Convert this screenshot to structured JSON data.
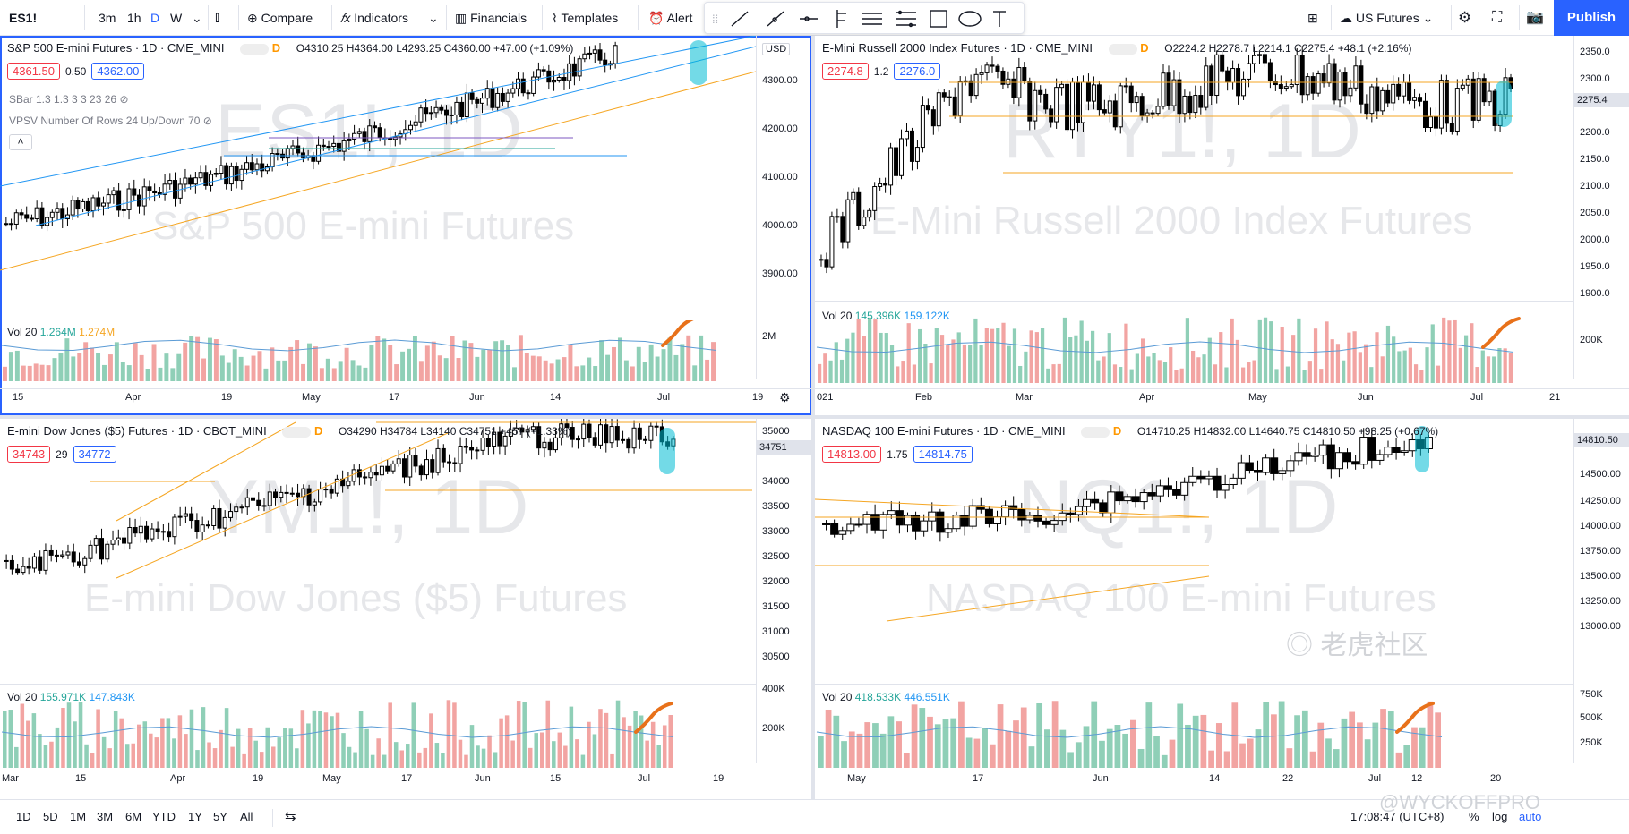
{
  "topbar": {
    "symbol": "ES1!",
    "intervals": [
      "3m",
      "1h",
      "D",
      "W"
    ],
    "compare": "Compare",
    "indicators": "Indicators",
    "financials": "Financials",
    "templates": "Templates",
    "alert": "Alert",
    "watchlist": "US Futures",
    "publish": "Publish"
  },
  "panels": [
    {
      "id": "es",
      "title": "S&P 500 E-mini Futures · 1D · CME_MINI",
      "ohlc": "O4310.25 H4364.00 L4293.25 C4360.00 +47.00 (+1.09%)",
      "sell": "4361.50",
      "spread": "0.50",
      "buy": "4362.00",
      "currency": "USD",
      "indicators": [
        "SBar 1.3 1.3 3 3 23 26",
        "VPSV Number Of Rows 24 Up/Down 70"
      ],
      "watermark_symbol": "ES1!, 1D",
      "watermark_name": "S&P 500 E-mini Futures",
      "price_ticks": [
        "4300.00",
        "4200.00",
        "4100.00",
        "4000.00",
        "3900.00"
      ],
      "vol_legend": "Vol 20",
      "vol_v1": "1.264M",
      "vol_v2": "1.274M",
      "vol_tick": "2M",
      "date_ticks": [
        "15",
        "Apr",
        "19",
        "May",
        "17",
        "Jun",
        "14",
        "Jul",
        "19"
      ]
    },
    {
      "id": "rty",
      "title": "E-Mini Russell 2000 Index Futures · 1D · CME_MINI",
      "ohlc": "O2224.2 H2278.7 L2214.1 C2275.4 +48.1 (+2.16%)",
      "sell": "2274.8",
      "spread": "1.2",
      "buy": "2276.0",
      "watermark_symbol": "RTY1!, 1D",
      "watermark_name": "E-Mini Russell 2000 Index Futures",
      "price_ticks": [
        "2350.0",
        "2300.0",
        "2250.0",
        "2200.0",
        "2150.0",
        "2100.0",
        "2050.0",
        "2000.0",
        "1950.0",
        "1900.0"
      ],
      "last_price": "2275.4",
      "vol_legend": "Vol 20",
      "vol_v1": "145.396K",
      "vol_v2": "159.122K",
      "vol_tick": "200K",
      "date_ticks": [
        "021",
        "Feb",
        "Mar",
        "Apr",
        "May",
        "Jun",
        "Jul",
        "21"
      ]
    },
    {
      "id": "ym",
      "title": "E-mini Dow Jones ($5) Futures · 1D · CBOT_MINI",
      "ohlc": "O34290 H34784 L34140 C34751 +457 (+1.33%)",
      "sell": "34743",
      "spread": "29",
      "buy": "34772",
      "watermark_symbol": "YM1!, 1D",
      "watermark_name": "E-mini Dow Jones ($5) Futures",
      "price_ticks": [
        "35000",
        "34500",
        "34000",
        "33500",
        "33000",
        "32500",
        "32000",
        "31500",
        "31000",
        "30500"
      ],
      "last_price": "34751",
      "vol_legend": "Vol 20",
      "vol_v1": "155.971K",
      "vol_v2": "147.843K",
      "vol_ticks": [
        "400K",
        "200K"
      ],
      "date_ticks": [
        "Mar",
        "15",
        "Apr",
        "19",
        "May",
        "17",
        "Jun",
        "15",
        "Jul",
        "19"
      ]
    },
    {
      "id": "nq",
      "title": "NASDAQ 100 E-mini Futures · 1D · CME_MINI",
      "ohlc": "O14710.25 H14832.00 L14640.75 C14810.50 +98.25 (+0.67%)",
      "sell": "14813.00",
      "spread": "1.75",
      "buy": "14814.75",
      "watermark_symbol": "NQ1!, 1D",
      "watermark_name": "NASDAQ 100 E-mini Futures",
      "price_ticks": [
        "14500.00",
        "14250.00",
        "14000.00",
        "13750.00",
        "13500.00",
        "13250.00",
        "13000.00"
      ],
      "last_price": "14810.50",
      "vol_legend": "Vol 20",
      "vol_v1": "418.533K",
      "vol_v2": "446.551K",
      "vol_ticks": [
        "750K",
        "500K",
        "250K"
      ],
      "date_ticks": [
        "May",
        "17",
        "Jun",
        "14",
        "22",
        "Jul",
        "12",
        "20"
      ]
    }
  ],
  "bottombar": {
    "ranges": [
      "1D",
      "5D",
      "1M",
      "3M",
      "6M",
      "YTD",
      "1Y",
      "5Y",
      "All"
    ],
    "time": "17:08:47 (UTC+8)",
    "percent": "%",
    "log": "log",
    "auto": "auto"
  },
  "overlay_text": {
    "site": "老虎社区",
    "author": "@WYCKOFFPRO"
  },
  "colors": {
    "up": "#26a69a",
    "down": "#ef5350",
    "candle_up": "#ffffff",
    "candle_down": "#000000",
    "accent": "#2962ff",
    "orange": "#f5a623",
    "trend_blue": "#2196f3",
    "highlight": "#00bcd4",
    "orange_scribble": "#e8711a"
  }
}
